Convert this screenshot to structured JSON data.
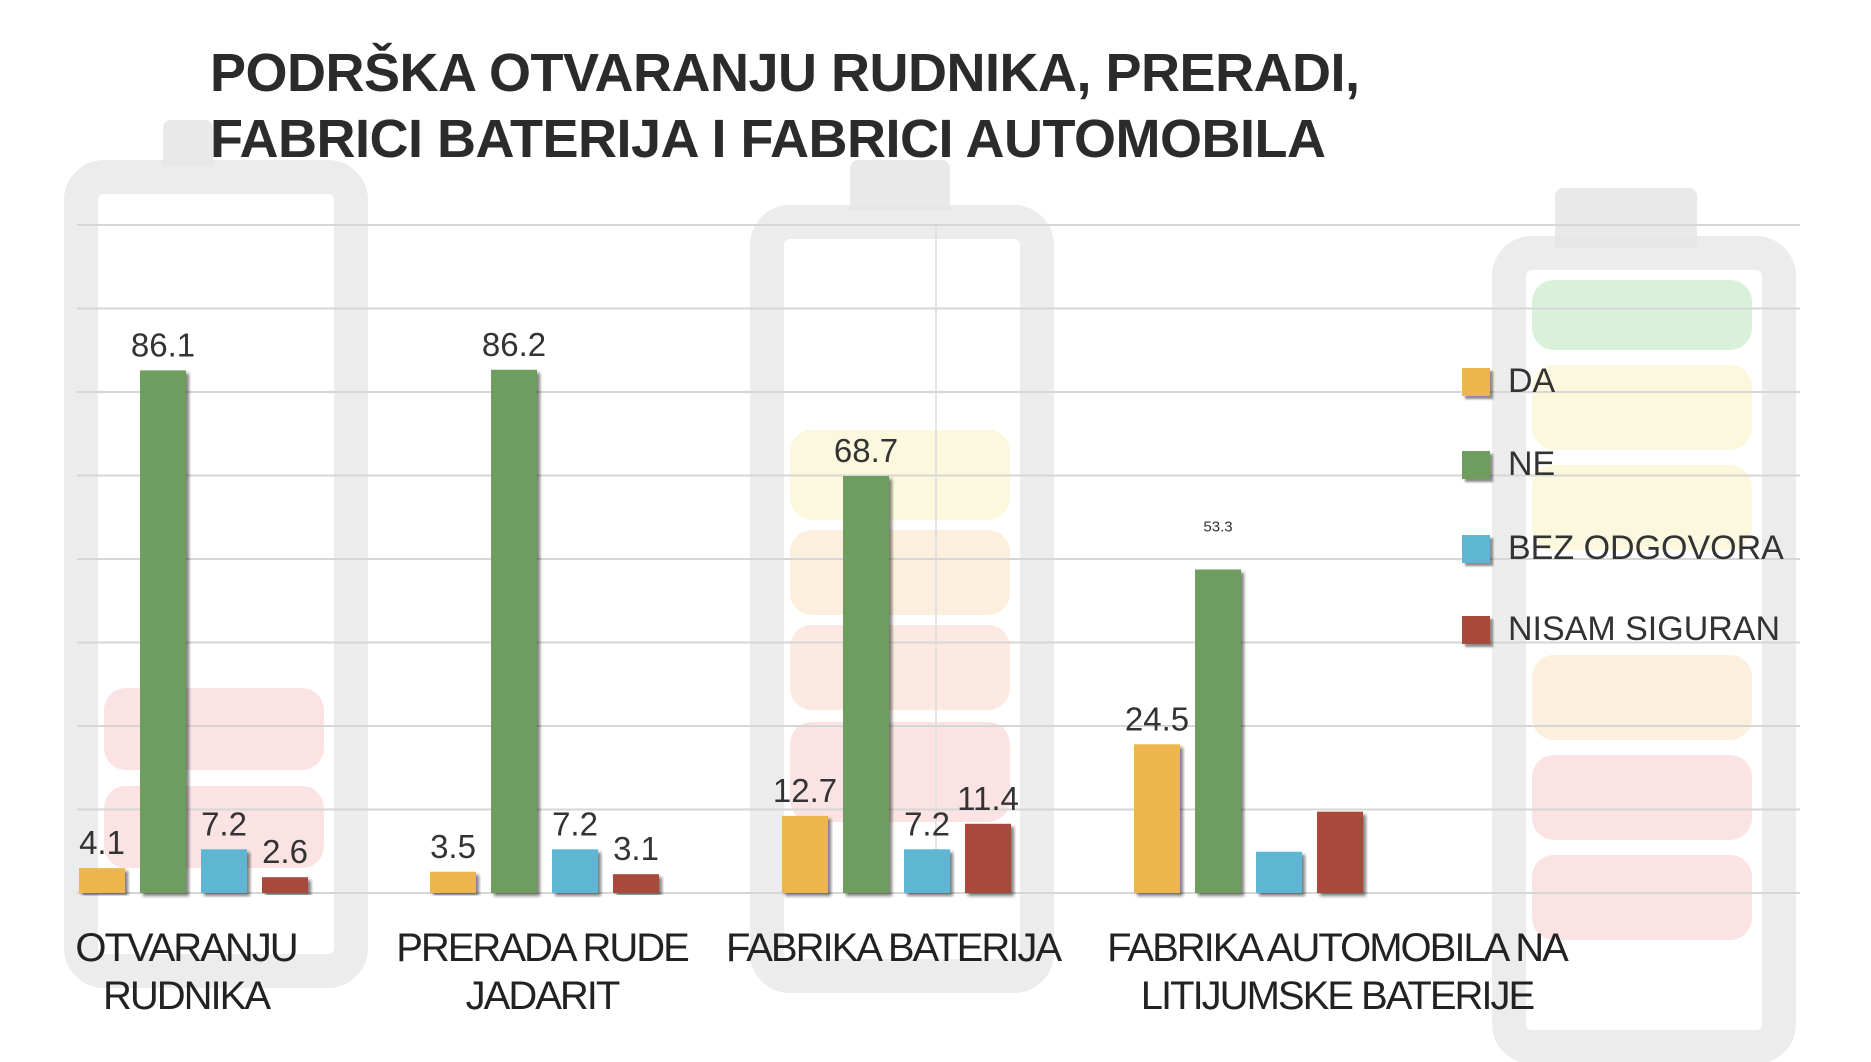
{
  "chart_data": {
    "type": "bar",
    "title": "PODRŠKA OTVARANJU RUDNIKA, PRERADI, FABRICI BATERIJA I FABRICI AUTOMOBILA",
    "title_lines": [
      "PODRŠKA OTVARANJU RUDNIKA, PRERADI,",
      "FABRICI BATERIJA I FABRICI AUTOMOBILA"
    ],
    "categories": [
      [
        "OTVARANJU",
        "RUDNIKA"
      ],
      [
        "PRERADA RUDE",
        "JADARIT"
      ],
      [
        "FABRIKA BATERIJA"
      ],
      [
        "FABRIKA AUTOMOBILA NA",
        "LITIJUMSKE BATERIJE"
      ]
    ],
    "series": [
      {
        "name": "DA",
        "color": "#edb54e",
        "values": [
          4.1,
          3.5,
          12.7,
          24.5
        ],
        "labels": [
          "4.1",
          "3.5",
          "12.7",
          "24.5"
        ]
      },
      {
        "name": "NE",
        "color": "#6e9d5f",
        "values": [
          86.1,
          86.2,
          68.7,
          53.3
        ],
        "labels": [
          "86.1",
          "86.2",
          "68.7",
          "53.3"
        ]
      },
      {
        "name": "BEZ ODGOVORA",
        "color": "#5fb6d2",
        "values": [
          7.2,
          7.2,
          7.2,
          6.8
        ],
        "labels": [
          "7.2",
          "7.2",
          "7.2",
          ""
        ]
      },
      {
        "name": "NISAM SIGURAN",
        "color": "#a84a3a",
        "values": [
          2.6,
          3.1,
          11.4,
          13.4
        ],
        "labels": [
          "2.6",
          "3.1",
          "11.4",
          ""
        ]
      }
    ],
    "ylim": [
      0,
      100
    ],
    "grid": true,
    "legend_position": "right"
  }
}
